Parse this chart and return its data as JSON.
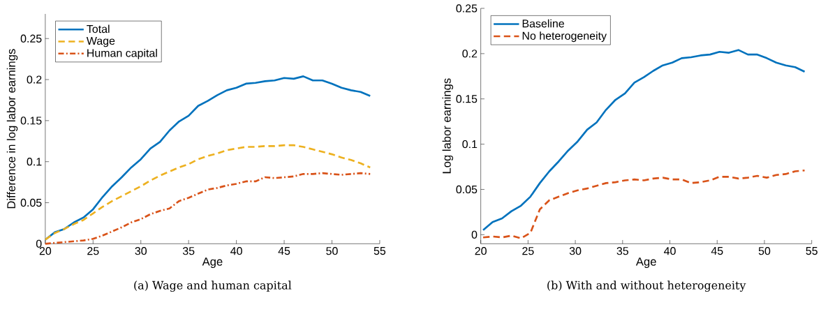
{
  "chart_data": [
    {
      "type": "line",
      "xlabel": "Age",
      "ylabel": "Difference in log labor earnings",
      "annotations": [
        "(a) Wage and human capital"
      ],
      "legend": "top left",
      "x": [
        20,
        21,
        22,
        23,
        24,
        25,
        26,
        27,
        28,
        29,
        30,
        31,
        32,
        33,
        34,
        35,
        36,
        37,
        38,
        39,
        40,
        41,
        42,
        43,
        44,
        45,
        46,
        47,
        48,
        49,
        50,
        51,
        52,
        53,
        54
      ],
      "xlim": [
        20,
        55
      ],
      "ylim": [
        0,
        0.28
      ],
      "xticks": [
        20,
        25,
        30,
        35,
        40,
        45,
        50,
        55
      ],
      "yticks": [
        0,
        0.05,
        0.1,
        0.15,
        0.2,
        0.25
      ],
      "series": [
        {
          "name": "Total",
          "color": "#0072bd",
          "line_style": "solid",
          "values": [
            0.005,
            0.014,
            0.018,
            0.026,
            0.032,
            0.042,
            0.057,
            0.07,
            0.081,
            0.093,
            0.103,
            0.116,
            0.124,
            0.138,
            0.149,
            0.156,
            0.168,
            0.174,
            0.181,
            0.187,
            0.19,
            0.195,
            0.196,
            0.198,
            0.199,
            0.202,
            0.201,
            0.204,
            0.199,
            0.199,
            0.195,
            0.19,
            0.187,
            0.185,
            0.18
          ]
        },
        {
          "name": "Wage",
          "color": "#edb120",
          "line_style": "dashed",
          "values": [
            0.005,
            0.013,
            0.018,
            0.024,
            0.029,
            0.037,
            0.045,
            0.052,
            0.058,
            0.064,
            0.07,
            0.077,
            0.083,
            0.088,
            0.093,
            0.097,
            0.103,
            0.107,
            0.11,
            0.114,
            0.116,
            0.118,
            0.118,
            0.119,
            0.119,
            0.12,
            0.12,
            0.118,
            0.115,
            0.112,
            0.109,
            0.105,
            0.102,
            0.098,
            0.093
          ]
        },
        {
          "name": "Human capital",
          "color": "#d95319",
          "line_style": "dashdot",
          "values": [
            0.0,
            0.001,
            0.002,
            0.003,
            0.004,
            0.006,
            0.01,
            0.015,
            0.02,
            0.026,
            0.03,
            0.036,
            0.04,
            0.043,
            0.052,
            0.056,
            0.061,
            0.066,
            0.068,
            0.071,
            0.073,
            0.076,
            0.076,
            0.081,
            0.08,
            0.081,
            0.082,
            0.085,
            0.085,
            0.086,
            0.085,
            0.084,
            0.085,
            0.086,
            0.085
          ]
        }
      ]
    },
    {
      "type": "line",
      "xlabel": "Age",
      "ylabel": "Log labor earnings",
      "annotations": [
        "(b) With and without heterogeneity"
      ],
      "legend": "top left",
      "x": [
        20.25,
        21.25,
        22.25,
        23.25,
        24.25,
        25.25,
        26.25,
        27.25,
        28.25,
        29.25,
        30.25,
        31.25,
        32.25,
        33.25,
        34.25,
        35.25,
        36.25,
        37.25,
        38.25,
        39.25,
        40.25,
        41.25,
        42.25,
        43.25,
        44.25,
        45.25,
        46.25,
        47.25,
        48.25,
        49.25,
        50.25,
        51.25,
        52.25,
        53.25,
        54.25
      ],
      "xlim": [
        20,
        55
      ],
      "ylim": [
        -0.01,
        0.25
      ],
      "xticks": [
        20,
        25,
        30,
        35,
        40,
        45,
        50,
        55
      ],
      "yticks": [
        0,
        0.05,
        0.1,
        0.15,
        0.2,
        0.25
      ],
      "series": [
        {
          "name": "Baseline",
          "color": "#0072bd",
          "line_style": "solid",
          "values": [
            0.005,
            0.014,
            0.018,
            0.026,
            0.032,
            0.042,
            0.057,
            0.07,
            0.081,
            0.093,
            0.103,
            0.116,
            0.124,
            0.138,
            0.149,
            0.156,
            0.168,
            0.174,
            0.181,
            0.187,
            0.19,
            0.195,
            0.196,
            0.198,
            0.199,
            0.202,
            0.201,
            0.204,
            0.199,
            0.199,
            0.195,
            0.19,
            0.187,
            0.185,
            0.18
          ]
        },
        {
          "name": "No heterogeneity",
          "color": "#d95319",
          "line_style": "dashed",
          "values": [
            -0.003,
            -0.002,
            -0.003,
            -0.001,
            -0.004,
            0.002,
            0.028,
            0.038,
            0.042,
            0.046,
            0.049,
            0.051,
            0.054,
            0.057,
            0.058,
            0.06,
            0.061,
            0.06,
            0.062,
            0.063,
            0.061,
            0.061,
            0.057,
            0.058,
            0.06,
            0.064,
            0.064,
            0.062,
            0.063,
            0.065,
            0.063,
            0.066,
            0.067,
            0.07,
            0.071
          ]
        }
      ]
    }
  ]
}
